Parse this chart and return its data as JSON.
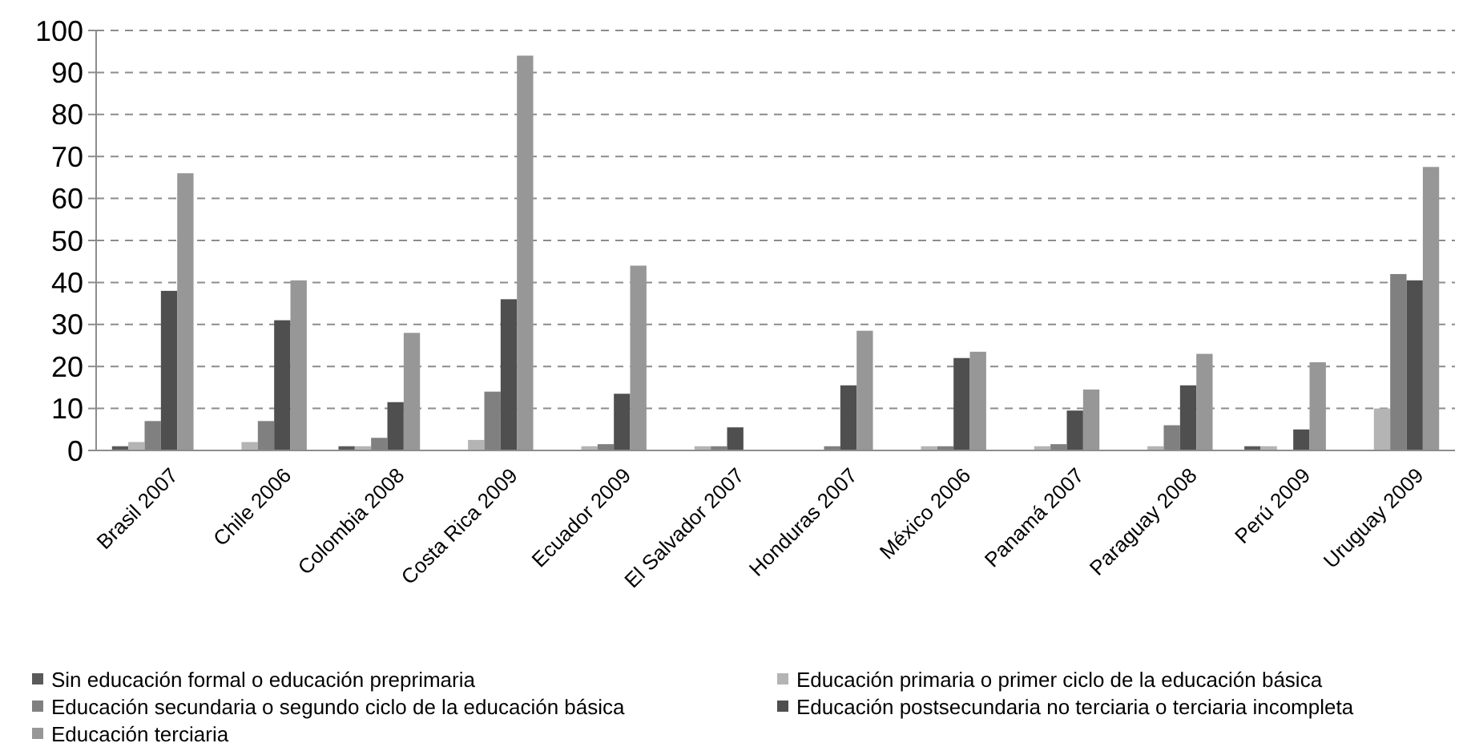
{
  "chart_data": {
    "type": "bar",
    "categories": [
      "Brasil 2007",
      "Chile 2006",
      "Colombia 2008",
      "Costa Rica 2009",
      "Ecuador 2009",
      "El Salvador 2007",
      "Honduras 2007",
      "México 2006",
      "Panamá 2007",
      "Paraguay 2008",
      "Perú 2009",
      "Uruguay 2009"
    ],
    "series": [
      {
        "name": "Sin educación formal o educación preprimaria",
        "color": "#5a5a5a",
        "values": [
          1,
          0,
          1,
          0,
          0,
          0,
          0,
          0,
          0,
          0,
          1,
          0
        ]
      },
      {
        "name": "Educación primaria o primer ciclo de la educación básica",
        "color": "#b4b4b4",
        "values": [
          2,
          2,
          1,
          2.5,
          1,
          1,
          0,
          1,
          1,
          1,
          1,
          10
        ]
      },
      {
        "name": "Educación secundaria o segundo ciclo de la educación básica",
        "color": "#808080",
        "values": [
          7,
          7,
          3,
          14,
          1.5,
          1,
          1,
          1,
          1.5,
          6,
          0,
          42
        ]
      },
      {
        "name": "Educación postsecundaria no terciaria o terciaria incompleta",
        "color": "#4f4f4f",
        "values": [
          38,
          31,
          11.5,
          36,
          13.5,
          5.5,
          15.5,
          22,
          9.5,
          15.5,
          5,
          40.5
        ]
      },
      {
        "name": "Educación terciaria",
        "color": "#979797",
        "values": [
          66,
          40.5,
          28,
          94,
          44,
          0,
          28.5,
          23.5,
          14.5,
          23,
          21,
          67.5
        ]
      }
    ],
    "ylim": [
      0,
      100
    ],
    "yticks": [
      0,
      10,
      20,
      30,
      40,
      50,
      60,
      70,
      80,
      90,
      100
    ],
    "grid": "y",
    "legend": "bottom"
  }
}
